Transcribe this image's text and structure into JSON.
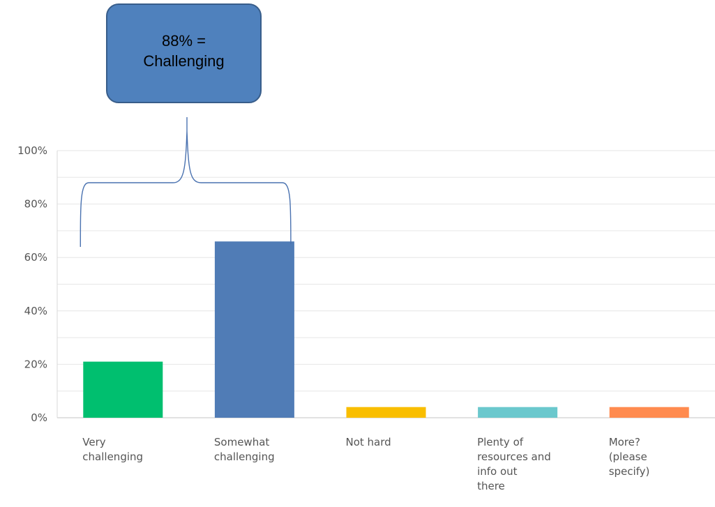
{
  "annotation": {
    "line1": "88% =",
    "line2": "Challenging"
  },
  "chart_data": {
    "type": "bar",
    "title": "",
    "xlabel": "",
    "ylabel": "",
    "ylim": [
      0,
      100
    ],
    "yticks": [
      "0%",
      "20%",
      "40%",
      "60%",
      "80%",
      "100%"
    ],
    "grid": true,
    "categories": [
      [
        "Very",
        "challenging"
      ],
      [
        "Somewhat",
        "challenging"
      ],
      [
        "Not hard"
      ],
      [
        "Plenty of",
        "resources and",
        "info out",
        "there"
      ],
      [
        "More?",
        "(please",
        "specify)"
      ]
    ],
    "values": [
      21,
      66,
      4,
      4,
      4
    ],
    "colors": [
      "#00bf6f",
      "#507cb6",
      "#f9be00",
      "#6bc8cd",
      "#ff8b4f"
    ],
    "bracket_spans_categories": [
      0,
      1
    ]
  }
}
